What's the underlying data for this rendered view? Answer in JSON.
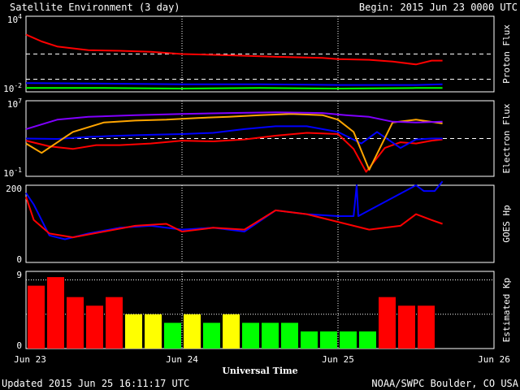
{
  "header": {
    "title": "Satellite Environment (3 day)",
    "begin": "Begin:  2015 Jun 23 0000 UTC"
  },
  "footer": {
    "updated": "Updated 2015 Jun 25 16:11:17 UTC",
    "source": "NOAA/SWPC Boulder, CO USA"
  },
  "x_axis": {
    "title": "Universal Time",
    "ticks": [
      "Jun 23",
      "Jun 24",
      "Jun 25",
      "Jun 26"
    ]
  },
  "panels": {
    "proton": {
      "label": "Proton Flux",
      "ytick_top": "10^4",
      "ytick_bottom": "10^-2"
    },
    "electron": {
      "label": "Electron Flux",
      "ytick_top": "10^7",
      "ytick_bottom": "10^-1"
    },
    "goes": {
      "label": "GOES Hp",
      "ytick_top": "200",
      "ytick_bottom": "0"
    },
    "kp": {
      "label": "Estimated Kp",
      "ytick_top": "9",
      "ytick_bottom": "0"
    }
  },
  "colors": {
    "red": "#ff0000",
    "blue": "#0000ff",
    "green": "#00ff00",
    "orange": "#ffa500",
    "purple": "#8000ff",
    "yellow": "#ffff00",
    "background": "#000000",
    "foreground": "#ffffff"
  },
  "chart_data": [
    {
      "type": "line",
      "panel": "Proton Flux",
      "yscale": "log",
      "ylim": [
        0.01,
        10000
      ],
      "x_unit": "days since 2015 Jun 23 0000 UTC",
      "xlim": [
        0,
        3
      ],
      "reference_lines": [
        10,
        0.1
      ],
      "series": [
        {
          "color": "red",
          "x": [
            0,
            0.1,
            0.2,
            0.4,
            0.6,
            0.8,
            1.0,
            1.3,
            1.6,
            1.9,
            2.0,
            2.2,
            2.35,
            2.5,
            2.6,
            2.67
          ],
          "y": [
            350,
            100,
            40,
            20,
            18,
            15,
            10,
            8,
            6,
            5,
            4,
            3.5,
            2.5,
            1.5,
            3,
            3
          ]
        },
        {
          "color": "blue",
          "x": [
            0,
            0.5,
            1.0,
            1.5,
            2.0,
            2.5,
            2.67
          ],
          "y": [
            0.05,
            0.045,
            0.04,
            0.04,
            0.035,
            0.035,
            0.04
          ]
        },
        {
          "color": "green",
          "x": [
            0,
            0.5,
            1.0,
            1.5,
            2.0,
            2.5,
            2.67
          ],
          "y": [
            0.02,
            0.02,
            0.018,
            0.02,
            0.018,
            0.02,
            0.02
          ]
        }
      ]
    },
    {
      "type": "line",
      "panel": "Electron Flux",
      "yscale": "log",
      "ylim": [
        0.1,
        10000000
      ],
      "xlim": [
        0,
        3
      ],
      "reference_lines": [
        1000
      ],
      "series": [
        {
          "color": "red",
          "x": [
            0,
            0.15,
            0.3,
            0.45,
            0.6,
            0.8,
            1.0,
            1.2,
            1.4,
            1.6,
            1.8,
            2.0,
            2.1,
            2.18,
            2.3,
            2.4,
            2.5,
            2.6,
            2.67
          ],
          "y": [
            600,
            150,
            80,
            200,
            200,
            300,
            600,
            500,
            800,
            2000,
            4000,
            3000,
            80,
            0.3,
            100,
            400,
            300,
            600,
            800
          ]
        },
        {
          "color": "blue",
          "x": [
            0,
            0.2,
            0.4,
            0.6,
            0.8,
            1.0,
            1.2,
            1.4,
            1.6,
            1.8,
            2.0,
            2.15,
            2.25,
            2.4,
            2.5,
            2.6,
            2.67
          ],
          "y": [
            1000,
            900,
            1500,
            2000,
            2500,
            3000,
            4000,
            10000,
            20000,
            20000,
            5000,
            300,
            5000,
            100,
            800,
            1000,
            1000
          ]
        },
        {
          "color": "orange",
          "x": [
            0,
            0.1,
            0.3,
            0.5,
            0.7,
            0.9,
            1.1,
            1.3,
            1.5,
            1.7,
            1.9,
            2.0,
            2.1,
            2.2,
            2.35,
            2.5,
            2.67
          ],
          "y": [
            300,
            30,
            5000,
            50000,
            80000,
            100000,
            150000,
            200000,
            300000,
            400000,
            300000,
            100000,
            5000,
            0.5,
            50000,
            100000,
            40000
          ]
        },
        {
          "color": "purple",
          "x": [
            0,
            0.2,
            0.4,
            0.7,
            1.0,
            1.3,
            1.6,
            1.9,
            2.05,
            2.2,
            2.35,
            2.5,
            2.67
          ],
          "y": [
            10000,
            100000,
            200000,
            300000,
            400000,
            500000,
            600000,
            500000,
            300000,
            200000,
            60000,
            50000,
            60000
          ]
        }
      ]
    },
    {
      "type": "line",
      "panel": "GOES Hp",
      "ylim": [
        0,
        200
      ],
      "xlim": [
        0,
        3
      ],
      "series": [
        {
          "color": "blue",
          "x": [
            0,
            0.05,
            0.15,
            0.25,
            0.4,
            0.6,
            0.8,
            1.0,
            1.2,
            1.4,
            1.6,
            1.8,
            2.0,
            2.1,
            2.12,
            2.13,
            2.5,
            2.55,
            2.62,
            2.67
          ],
          "y": [
            180,
            150,
            70,
            60,
            75,
            90,
            95,
            85,
            90,
            80,
            135,
            125,
            120,
            120,
            200,
            120,
            200,
            185,
            185,
            210
          ]
        },
        {
          "color": "red",
          "x": [
            0,
            0.05,
            0.15,
            0.3,
            0.5,
            0.7,
            0.9,
            1.0,
            1.2,
            1.4,
            1.6,
            1.8,
            2.0,
            2.2,
            2.4,
            2.5,
            2.6,
            2.67
          ],
          "y": [
            170,
            110,
            75,
            65,
            80,
            95,
            100,
            80,
            90,
            85,
            135,
            125,
            105,
            85,
            95,
            125,
            110,
            100
          ]
        }
      ]
    },
    {
      "type": "bar",
      "panel": "Estimated Kp",
      "ylim": [
        0,
        9
      ],
      "xlim": [
        0,
        3
      ],
      "x_start_days": [
        0,
        0.125,
        0.25,
        0.375,
        0.5,
        0.625,
        0.75,
        0.875,
        1.0,
        1.125,
        1.25,
        1.375,
        1.5,
        1.625,
        1.75,
        1.875,
        2.0,
        2.125,
        2.25,
        2.375,
        2.5
      ],
      "values": [
        7.33,
        8.33,
        6.0,
        5.0,
        6.0,
        4.0,
        4.0,
        3.0,
        4.0,
        3.0,
        4.0,
        3.0,
        3.0,
        3.0,
        2.0,
        2.0,
        2.0,
        2.0,
        6.0,
        5.0,
        5.0
      ],
      "bar_colors": [
        "red",
        "red",
        "red",
        "red",
        "red",
        "yellow",
        "yellow",
        "green",
        "yellow",
        "green",
        "yellow",
        "green",
        "green",
        "green",
        "green",
        "green",
        "green",
        "green",
        "red",
        "red",
        "red"
      ],
      "reference_lines": [
        4,
        8
      ]
    }
  ]
}
